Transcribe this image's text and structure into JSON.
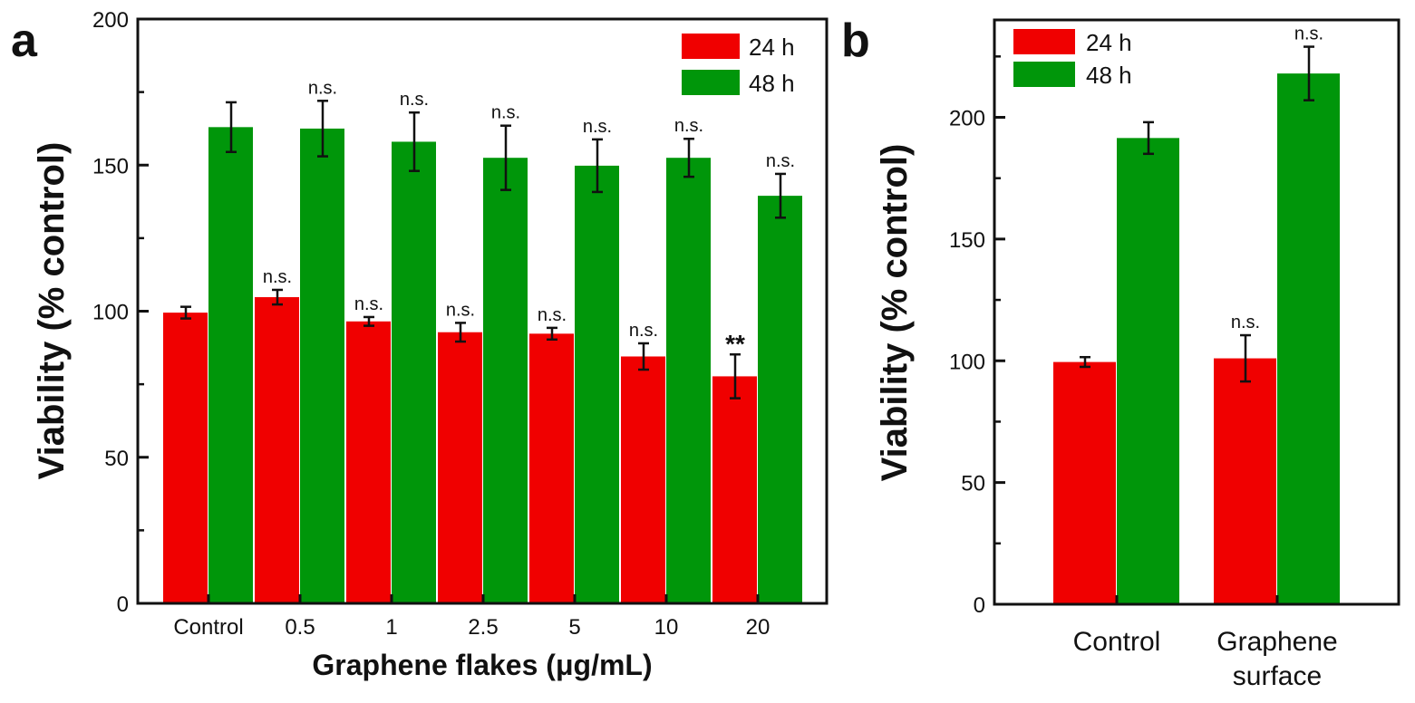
{
  "chart_data": [
    {
      "type": "bar",
      "panel_label": "a",
      "xlabel": "Graphene flakes (μg/mL)",
      "ylabel": "Viability (% control)",
      "ylim": [
        0,
        200
      ],
      "yticks": [
        0,
        50,
        100,
        150,
        200
      ],
      "categories": [
        "Control",
        "0.5",
        "1",
        "2.5",
        "5",
        "10",
        "20"
      ],
      "legend_placement": "top-right",
      "series": [
        {
          "name": "24 h",
          "color": "#f00000",
          "values": [
            99.5,
            104.8,
            96.5,
            92.8,
            92.3,
            84.5,
            77.7
          ],
          "errors": [
            2,
            2.5,
            1.5,
            3.2,
            2,
            4.5,
            7.5
          ],
          "annotations": [
            "",
            "n.s.",
            "n.s.",
            "n.s.",
            "n.s.",
            "n.s.",
            "**"
          ]
        },
        {
          "name": "48 h",
          "color": "#00960a",
          "values": [
            163,
            162.5,
            158,
            152.5,
            149.8,
            152.5,
            139.5
          ],
          "errors": [
            8.5,
            9.5,
            10,
            11,
            9,
            6.5,
            7.5
          ],
          "annotations": [
            "",
            "n.s.",
            "n.s.",
            "n.s.",
            "n.s.",
            "n.s.",
            "n.s."
          ]
        }
      ]
    },
    {
      "type": "bar",
      "panel_label": "b",
      "xlabel": "",
      "ylabel": "Viability (% control)",
      "ylim": [
        0,
        240
      ],
      "yticks": [
        0,
        50,
        100,
        150,
        200
      ],
      "categories": [
        "Control",
        "Graphene surface"
      ],
      "legend_placement": "top-left",
      "series": [
        {
          "name": "24 h",
          "color": "#f00000",
          "values": [
            99.5,
            101
          ],
          "errors": [
            2,
            9.5
          ],
          "annotations": [
            "",
            "n.s."
          ]
        },
        {
          "name": "48 h",
          "color": "#00960a",
          "values": [
            191.5,
            218
          ],
          "errors": [
            6.5,
            11
          ],
          "annotations": [
            "",
            "n.s."
          ]
        }
      ]
    }
  ]
}
